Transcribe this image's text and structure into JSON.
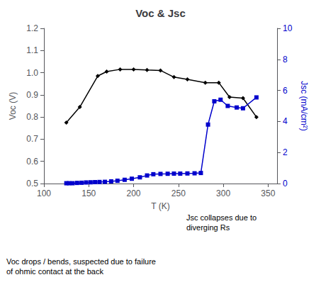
{
  "chart_data": {
    "type": "line",
    "title": "Voc & Jsc",
    "xlabel": "T (K)",
    "ylabel": "Voc (V)",
    "y2label": "Jsc (mA/cm²)",
    "xlim": [
      100,
      360
    ],
    "xticks": [
      100,
      150,
      200,
      250,
      300,
      350
    ],
    "ylim": [
      0.5,
      1.2
    ],
    "yticks": [
      0.5,
      0.6,
      0.7,
      0.8,
      0.9,
      {
        "value": 1,
        "label": "1.0"
      },
      1.1,
      1.2
    ],
    "y2lim": [
      0,
      10
    ],
    "y2ticks": [
      0,
      2,
      4,
      6,
      8,
      10
    ],
    "grid": false,
    "series": [
      {
        "x": [
          125,
          140,
          160,
          170,
          185,
          200,
          215,
          230,
          245,
          260,
          280,
          295,
          307,
          322,
          337
        ],
        "values": [
          0.775,
          0.845,
          0.985,
          1.005,
          1.015,
          1.015,
          1.012,
          1.01,
          0.98,
          0.97,
          0.955,
          0.955,
          0.89,
          0.885,
          0.8
        ],
        "color": "#000000",
        "marker": "diamond"
      },
      {
        "x": [
          125,
          128,
          132,
          137,
          142,
          147,
          152,
          157,
          162,
          168,
          175,
          182,
          190,
          198,
          207,
          215,
          222,
          230,
          238,
          245,
          252,
          260,
          268,
          275,
          283,
          290,
          297,
          305,
          315,
          322,
          337
        ],
        "values": [
          0.02,
          0.02,
          0.02,
          0.04,
          0.05,
          0.07,
          0.08,
          0.09,
          0.1,
          0.11,
          0.14,
          0.18,
          0.24,
          0.31,
          0.4,
          0.52,
          0.6,
          0.62,
          0.63,
          0.64,
          0.64,
          0.65,
          0.66,
          0.68,
          3.8,
          5.3,
          5.4,
          5.0,
          4.9,
          4.85,
          5.55
        ],
        "color": "#0000cc",
        "marker": "square",
        "axis": "y2"
      }
    ],
    "annotations": [
      "Jsc collapses due to\ndiverging Rs",
      "Voc drops / bends, suspected due to failure\nof ohmic contact at the back"
    ]
  }
}
